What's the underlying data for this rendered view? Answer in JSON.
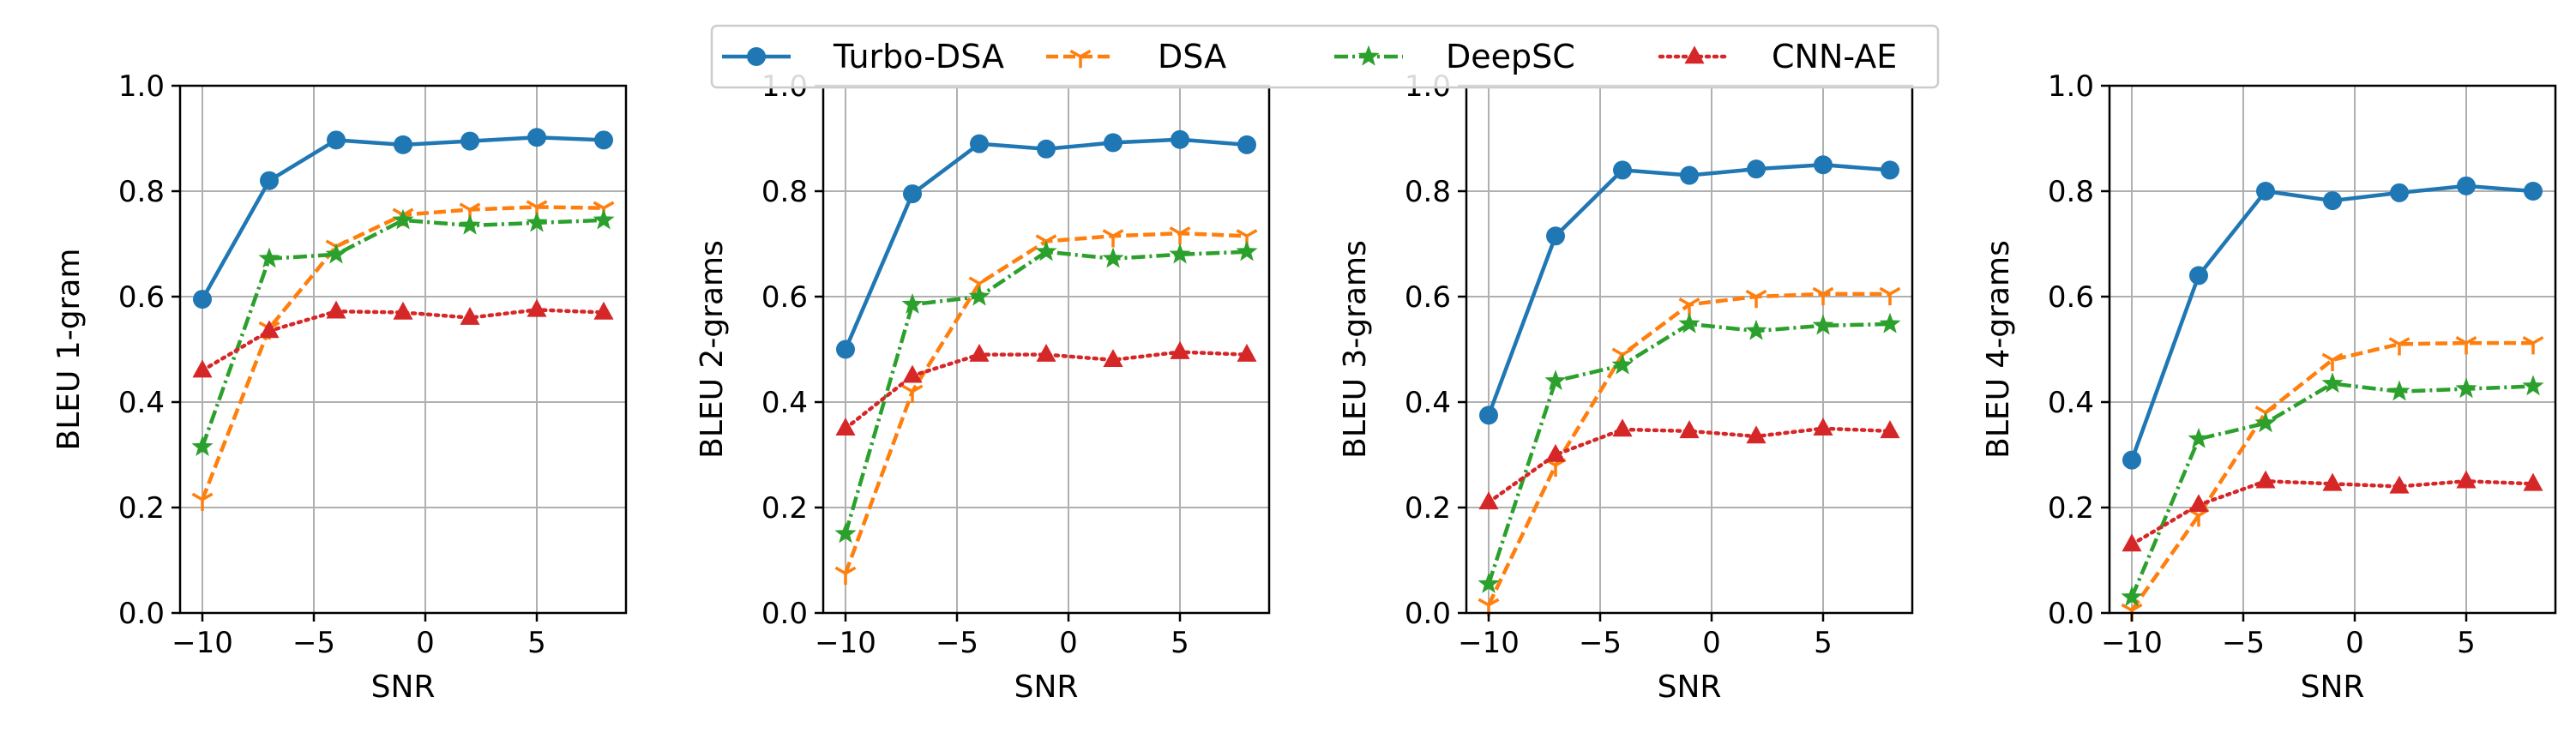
{
  "chart_data": {
    "type": "line",
    "series_styles": [
      {
        "name": "Turbo-DSA",
        "color": "#1f77b4",
        "dash": "solid",
        "marker": "circle"
      },
      {
        "name": "DSA",
        "color": "#ff7f0e",
        "dash": "dashed",
        "marker": "tri-down"
      },
      {
        "name": "DeepSC",
        "color": "#2ca02c",
        "dash": "dashdot",
        "marker": "star"
      },
      {
        "name": "CNN-AE",
        "color": "#d62728",
        "dash": "dotted",
        "marker": "triangle-up"
      }
    ],
    "legend": [
      "Turbo-DSA",
      "DSA",
      "DeepSC",
      "CNN-AE"
    ],
    "xlim": [
      -11,
      9
    ],
    "ylim": [
      0.0,
      1.0
    ],
    "xticks": [
      -10,
      -5,
      0,
      5
    ],
    "xtick_labels": [
      "−10",
      "−5",
      "0",
      "5"
    ],
    "yticks": [
      0.0,
      0.2,
      0.4,
      0.6,
      0.8,
      1.0
    ],
    "ytick_labels": [
      "0.0",
      "0.2",
      "0.4",
      "0.6",
      "0.8",
      "1.0"
    ],
    "grid": true,
    "panels": [
      {
        "ylabel": "BLEU 1-gram",
        "xlabel": "SNR",
        "x": [
          -10,
          -7,
          -4,
          -1,
          2,
          5,
          8
        ],
        "series": [
          {
            "name": "Turbo-DSA",
            "values": [
              0.595,
              0.82,
              0.897,
              0.888,
              0.895,
              0.902,
              0.897
            ]
          },
          {
            "name": "DSA",
            "values": [
              0.215,
              0.54,
              0.695,
              0.755,
              0.765,
              0.77,
              0.768
            ]
          },
          {
            "name": "DeepSC",
            "values": [
              0.315,
              0.672,
              0.68,
              0.745,
              0.735,
              0.74,
              0.745
            ]
          },
          {
            "name": "CNN-AE",
            "values": [
              0.46,
              0.535,
              0.572,
              0.57,
              0.56,
              0.575,
              0.57
            ]
          }
        ]
      },
      {
        "ylabel": "BLEU 2-grams",
        "xlabel": "SNR",
        "x": [
          -10,
          -7,
          -4,
          -1,
          2,
          5,
          8
        ],
        "series": [
          {
            "name": "Turbo-DSA",
            "values": [
              0.5,
              0.795,
              0.89,
              0.88,
              0.892,
              0.898,
              0.888
            ]
          },
          {
            "name": "DSA",
            "values": [
              0.075,
              0.42,
              0.625,
              0.705,
              0.715,
              0.72,
              0.715
            ]
          },
          {
            "name": "DeepSC",
            "values": [
              0.15,
              0.585,
              0.6,
              0.685,
              0.672,
              0.68,
              0.685
            ]
          },
          {
            "name": "CNN-AE",
            "values": [
              0.35,
              0.45,
              0.49,
              0.49,
              0.48,
              0.495,
              0.49
            ]
          }
        ]
      },
      {
        "ylabel": "BLEU 3-grams",
        "xlabel": "SNR",
        "x": [
          -10,
          -7,
          -4,
          -1,
          2,
          5,
          8
        ],
        "series": [
          {
            "name": "Turbo-DSA",
            "values": [
              0.375,
              0.715,
              0.84,
              0.83,
              0.842,
              0.85,
              0.84
            ]
          },
          {
            "name": "DSA",
            "values": [
              0.015,
              0.28,
              0.49,
              0.585,
              0.6,
              0.605,
              0.605
            ]
          },
          {
            "name": "DeepSC",
            "values": [
              0.055,
              0.44,
              0.47,
              0.548,
              0.535,
              0.545,
              0.548
            ]
          },
          {
            "name": "CNN-AE",
            "values": [
              0.21,
              0.3,
              0.348,
              0.345,
              0.335,
              0.35,
              0.345
            ]
          }
        ]
      },
      {
        "ylabel": "BLEU 4-grams",
        "xlabel": "SNR",
        "x": [
          -10,
          -7,
          -4,
          -1,
          2,
          5,
          8
        ],
        "series": [
          {
            "name": "Turbo-DSA",
            "values": [
              0.29,
              0.64,
              0.8,
              0.782,
              0.797,
              0.81,
              0.8
            ]
          },
          {
            "name": "DSA",
            "values": [
              0.005,
              0.185,
              0.38,
              0.48,
              0.51,
              0.512,
              0.512
            ]
          },
          {
            "name": "DeepSC",
            "values": [
              0.03,
              0.33,
              0.36,
              0.435,
              0.42,
              0.425,
              0.43
            ]
          },
          {
            "name": "CNN-AE",
            "values": [
              0.13,
              0.205,
              0.25,
              0.245,
              0.24,
              0.25,
              0.245
            ]
          }
        ]
      }
    ]
  }
}
